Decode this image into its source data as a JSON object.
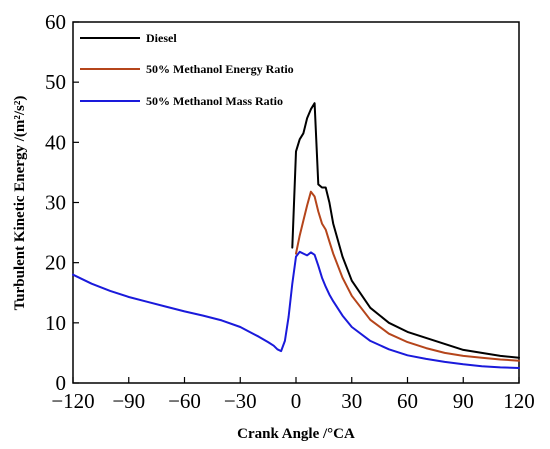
{
  "chart_data": {
    "type": "line",
    "xlabel": "Crank Angle /°CA",
    "ylabel": "Turbulent Kinetic Energy /(m²/s²)",
    "xlim": [
      -120,
      120
    ],
    "ylim": [
      0,
      60
    ],
    "xticks": [
      -120,
      -90,
      -60,
      -30,
      0,
      30,
      60,
      90,
      120
    ],
    "yticks": [
      0,
      10,
      20,
      30,
      40,
      50,
      60
    ],
    "xtick_labels": [
      "−120",
      "−90",
      "−60",
      "−30",
      "0",
      "30",
      "60",
      "90",
      "120"
    ],
    "ytick_labels": [
      "0",
      "10",
      "20",
      "30",
      "40",
      "50",
      "60"
    ],
    "grid": false,
    "legend_position": "top-left",
    "series": [
      {
        "name": "Diesel",
        "color": "#000000",
        "x": [
          -2,
          0,
          2,
          4,
          6,
          8,
          10,
          12,
          14,
          16,
          18,
          20,
          25,
          30,
          40,
          50,
          60,
          70,
          80,
          90,
          100,
          110,
          120
        ],
        "y": [
          22.5,
          38.5,
          40.5,
          41.5,
          44,
          45.5,
          46.5,
          33,
          32.5,
          32.5,
          30,
          26.5,
          21,
          17,
          12.5,
          10,
          8.5,
          7.5,
          6.5,
          5.5,
          5,
          4.5,
          4.2
        ]
      },
      {
        "name": "50% Methanol Energy Ratio",
        "color": "#b5451b",
        "x": [
          0,
          2,
          4,
          6,
          8,
          10,
          12,
          14,
          16,
          18,
          20,
          25,
          30,
          40,
          50,
          60,
          70,
          80,
          90,
          100,
          110,
          120
        ],
        "y": [
          21.5,
          24.5,
          27,
          29.5,
          31.8,
          31,
          28.5,
          26.5,
          25.5,
          23.5,
          21.5,
          17.5,
          14.5,
          10.5,
          8.2,
          6.8,
          5.8,
          5,
          4.5,
          4.2,
          3.9,
          3.7
        ]
      },
      {
        "name": "50% Methanol Mass Ratio",
        "color": "#1a1adb",
        "x": [
          -120,
          -110,
          -100,
          -90,
          -80,
          -70,
          -60,
          -50,
          -40,
          -30,
          -25,
          -20,
          -15,
          -12,
          -10,
          -8,
          -6,
          -4,
          -2,
          0,
          2,
          4,
          6,
          8,
          10,
          12,
          14,
          16,
          18,
          20,
          25,
          30,
          40,
          50,
          60,
          70,
          80,
          90,
          100,
          110,
          120
        ],
        "y": [
          18,
          16.5,
          15.3,
          14.3,
          13.5,
          12.7,
          11.9,
          11.2,
          10.4,
          9.3,
          8.5,
          7.7,
          6.8,
          6.2,
          5.6,
          5.3,
          7,
          11,
          16.5,
          21,
          21.8,
          21.5,
          21.2,
          21.7,
          21.3,
          19.5,
          17.5,
          16,
          14.7,
          13.6,
          11.2,
          9.3,
          7,
          5.6,
          4.6,
          4,
          3.5,
          3.1,
          2.8,
          2.6,
          2.5
        ]
      }
    ]
  }
}
